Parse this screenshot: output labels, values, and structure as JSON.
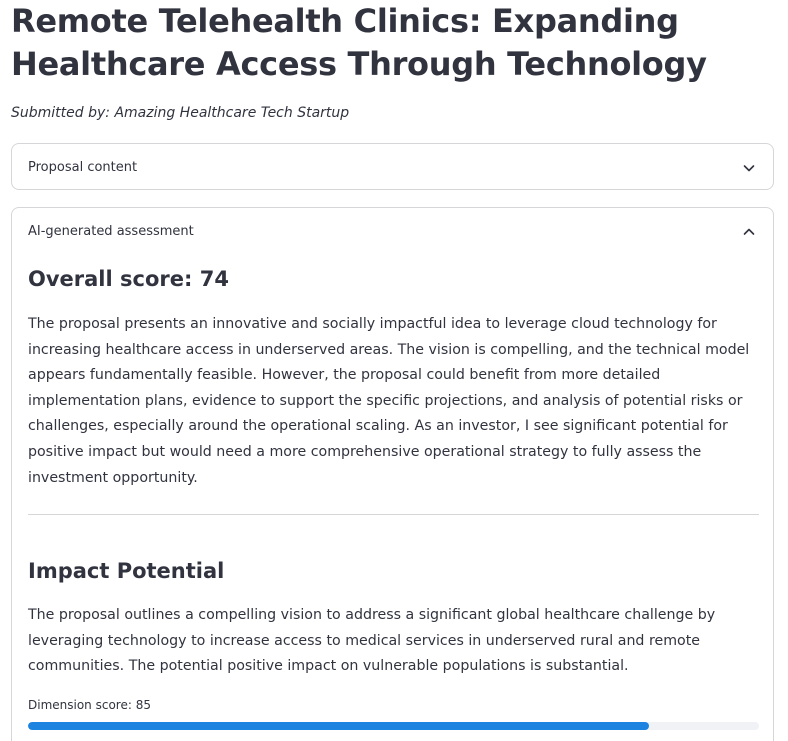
{
  "page": {
    "title": "Remote Telehealth Clinics: Expanding Healthcare Access Through Technology",
    "submitted_by": "Submitted by: Amazing Healthcare Tech Startup"
  },
  "expanders": {
    "proposal": {
      "label": "Proposal content",
      "state": "collapsed",
      "icon": "chevron-down-icon"
    },
    "assessment": {
      "label": "AI-generated assessment",
      "state": "expanded",
      "icon": "chevron-up-icon"
    }
  },
  "assessment": {
    "overall_heading": "Overall score: 74",
    "overall_summary": "The proposal presents an innovative and socially impactful idea to leverage cloud technology for increasing healthcare access in underserved areas. The vision is compelling, and the technical model appears fundamentally feasible. However, the proposal could benefit from more detailed implementation plans, evidence to support the specific projections, and analysis of potential risks or challenges, especially around the operational scaling. As an investor, I see significant potential for positive impact but would need a more comprehensive operational strategy to fully assess the investment opportunity.",
    "dimensions": [
      {
        "name": "Impact Potential",
        "text": "The proposal outlines a compelling vision to address a significant global healthcare challenge by leveraging technology to increase access to medical services in underserved rural and remote communities. The potential positive impact on vulnerable populations is substantial.",
        "score_label": "Dimension score: 85",
        "score": 85
      }
    ]
  },
  "colors": {
    "text": "#31333f",
    "border": "#d6d6d9",
    "progress_fill": "#1c83e1",
    "progress_track": "#f0f2f6"
  }
}
